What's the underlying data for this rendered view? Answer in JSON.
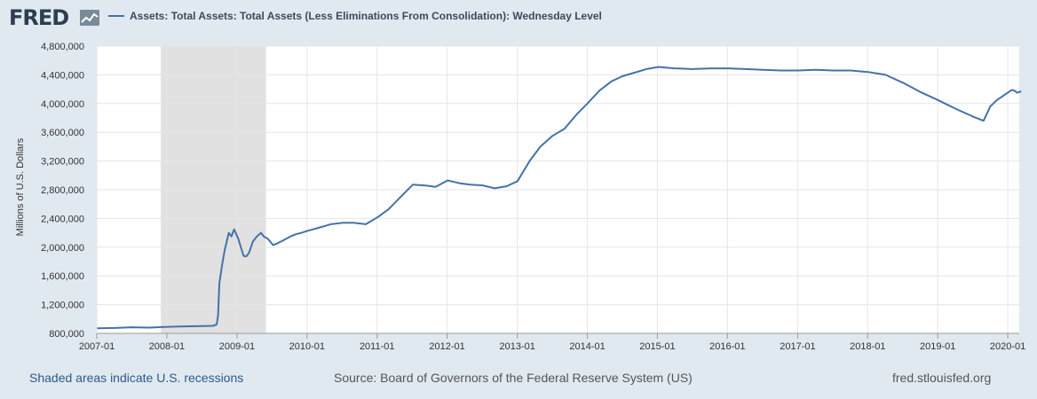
{
  "header": {
    "logo_text": "FRED",
    "legend_label": "Assets: Total Assets: Total Assets (Less Eliminations From Consolidation): Wednesday Level"
  },
  "footer": {
    "recession_note": "Shaded areas indicate U.S. recessions",
    "source": "Source: Board of Governors of the Federal Reserve System (US)",
    "site": "fred.stlouisfed.org"
  },
  "colors": {
    "line": "#4572a7",
    "plot_bg": "#ffffff",
    "recession": "#e1e1e1",
    "page_bg": "#e1e9f0"
  },
  "chart_data": {
    "type": "line",
    "ylabel": "Millions of U.S. Dollars",
    "ylim": [
      800000,
      4800000
    ],
    "yticks": [
      "800,000",
      "1,200,000",
      "1,600,000",
      "2,000,000",
      "2,400,000",
      "2,800,000",
      "3,200,000",
      "3,600,000",
      "4,000,000",
      "4,400,000",
      "4,800,000"
    ],
    "ytick_values": [
      800000,
      1200000,
      1600000,
      2000000,
      2400000,
      2800000,
      3200000,
      3600000,
      4000000,
      4400000,
      4800000
    ],
    "xlim": [
      "2007-01",
      "2020-03"
    ],
    "xticks": [
      "2007-01",
      "2008-01",
      "2009-01",
      "2010-01",
      "2011-01",
      "2012-01",
      "2013-01",
      "2014-01",
      "2015-01",
      "2016-01",
      "2017-01",
      "2018-01",
      "2019-01",
      "2020-01"
    ],
    "grid": true,
    "recessions": [
      {
        "start": "2007-12",
        "end": "2009-06"
      }
    ],
    "series": [
      {
        "name": "Assets: Total Assets: Total Assets (Less Eliminations From Consolidation): Wednesday Level",
        "points": [
          [
            "2007-01-03",
            870000
          ],
          [
            "2007-04-04",
            875000
          ],
          [
            "2007-07-04",
            885000
          ],
          [
            "2007-10-03",
            880000
          ],
          [
            "2007-12-19",
            890000
          ],
          [
            "2008-03-05",
            895000
          ],
          [
            "2008-06-04",
            900000
          ],
          [
            "2008-08-27",
            905000
          ],
          [
            "2008-09-17",
            925000
          ],
          [
            "2008-09-24",
            1050000
          ],
          [
            "2008-10-01",
            1500000
          ],
          [
            "2008-10-15",
            1750000
          ],
          [
            "2008-10-29",
            1960000
          ],
          [
            "2008-11-19",
            2200000
          ],
          [
            "2008-12-03",
            2150000
          ],
          [
            "2008-12-17",
            2250000
          ],
          [
            "2009-01-07",
            2120000
          ],
          [
            "2009-01-21",
            2000000
          ],
          [
            "2009-02-04",
            1880000
          ],
          [
            "2009-02-18",
            1870000
          ],
          [
            "2009-03-04",
            1920000
          ],
          [
            "2009-03-25",
            2080000
          ],
          [
            "2009-04-15",
            2150000
          ],
          [
            "2009-05-06",
            2200000
          ],
          [
            "2009-05-20",
            2150000
          ],
          [
            "2009-06-10",
            2120000
          ],
          [
            "2009-07-08",
            2030000
          ],
          [
            "2009-08-05",
            2060000
          ],
          [
            "2009-09-02",
            2100000
          ],
          [
            "2009-10-07",
            2150000
          ],
          [
            "2009-11-04",
            2180000
          ],
          [
            "2009-12-02",
            2200000
          ],
          [
            "2010-01-06",
            2230000
          ],
          [
            "2010-03-03",
            2270000
          ],
          [
            "2010-05-05",
            2320000
          ],
          [
            "2010-07-07",
            2340000
          ],
          [
            "2010-09-01",
            2340000
          ],
          [
            "2010-11-03",
            2320000
          ],
          [
            "2011-01-05",
            2420000
          ],
          [
            "2011-03-02",
            2530000
          ],
          [
            "2011-05-04",
            2700000
          ],
          [
            "2011-07-06",
            2870000
          ],
          [
            "2011-09-07",
            2860000
          ],
          [
            "2011-11-02",
            2840000
          ],
          [
            "2012-01-04",
            2930000
          ],
          [
            "2012-03-07",
            2890000
          ],
          [
            "2012-05-02",
            2870000
          ],
          [
            "2012-07-04",
            2860000
          ],
          [
            "2012-09-05",
            2820000
          ],
          [
            "2012-11-07",
            2850000
          ],
          [
            "2013-01-02",
            2920000
          ],
          [
            "2013-03-06",
            3200000
          ],
          [
            "2013-05-01",
            3400000
          ],
          [
            "2013-07-03",
            3550000
          ],
          [
            "2013-09-04",
            3650000
          ],
          [
            "2013-11-06",
            3850000
          ],
          [
            "2014-01-01",
            4000000
          ],
          [
            "2014-03-05",
            4180000
          ],
          [
            "2014-05-07",
            4310000
          ],
          [
            "2014-07-02",
            4380000
          ],
          [
            "2014-09-03",
            4430000
          ],
          [
            "2014-11-05",
            4480000
          ],
          [
            "2015-01-07",
            4510000
          ],
          [
            "2015-04-01",
            4490000
          ],
          [
            "2015-07-01",
            4480000
          ],
          [
            "2015-10-07",
            4490000
          ],
          [
            "2016-01-06",
            4490000
          ],
          [
            "2016-04-06",
            4480000
          ],
          [
            "2016-07-06",
            4470000
          ],
          [
            "2016-10-05",
            4460000
          ],
          [
            "2017-01-04",
            4460000
          ],
          [
            "2017-04-05",
            4470000
          ],
          [
            "2017-07-05",
            4460000
          ],
          [
            "2017-10-04",
            4460000
          ],
          [
            "2018-01-03",
            4440000
          ],
          [
            "2018-04-04",
            4400000
          ],
          [
            "2018-07-04",
            4290000
          ],
          [
            "2018-10-03",
            4160000
          ],
          [
            "2019-01-02",
            4050000
          ],
          [
            "2019-04-03",
            3930000
          ],
          [
            "2019-07-03",
            3820000
          ],
          [
            "2019-08-28",
            3760000
          ],
          [
            "2019-10-02",
            3960000
          ],
          [
            "2019-11-06",
            4050000
          ],
          [
            "2019-12-04",
            4100000
          ],
          [
            "2020-01-01",
            4150000
          ],
          [
            "2020-01-22",
            4190000
          ],
          [
            "2020-02-05",
            4180000
          ],
          [
            "2020-02-19",
            4150000
          ],
          [
            "2020-03-11",
            4170000
          ]
        ]
      }
    ]
  }
}
